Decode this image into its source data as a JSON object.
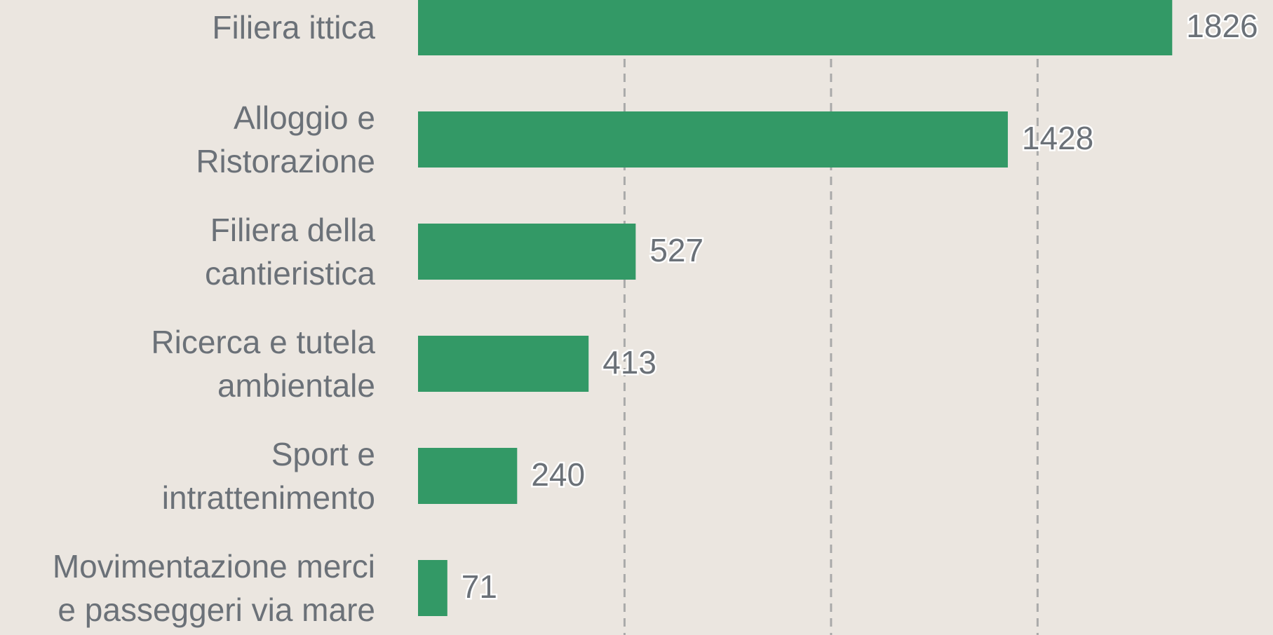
{
  "chart_data": {
    "type": "bar",
    "orientation": "horizontal",
    "categories": [
      "Filiera ittica",
      "Alloggio e\nRistorazione",
      "Filiera della\ncantieristica",
      "Ricerca e tutela\nambientale",
      "Sport e\nintrattenimento",
      "Movimentazione merci\ne passeggeri via mare"
    ],
    "values": [
      1826,
      1428,
      527,
      413,
      240,
      71
    ],
    "color": "#339966",
    "xlim": [
      0,
      2070
    ],
    "xticks": [
      500,
      1000,
      1500
    ],
    "grid": true
  }
}
